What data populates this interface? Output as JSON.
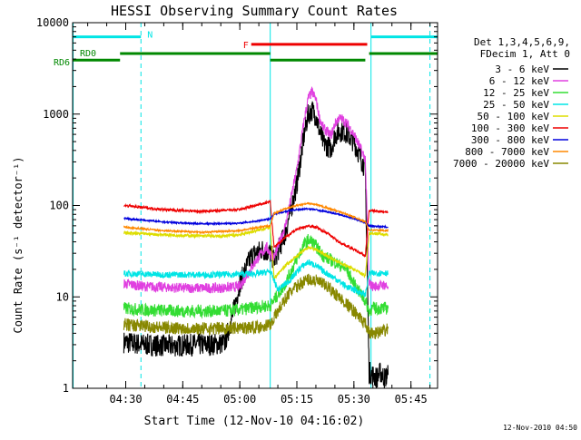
{
  "chart_data": {
    "type": "line",
    "title": "HESSI Observing Summary Count Rates",
    "xlabel": "Start Time (12-Nov-10 04:16:02)",
    "ylabel": "Count Rate (s⁻¹ detector⁻¹)",
    "ylog": true,
    "xlim": [
      "04:16:02",
      "05:52:00"
    ],
    "ylim": [
      1,
      10000
    ],
    "x_ticks": [
      "04:30",
      "04:45",
      "05:00",
      "05:15",
      "05:30",
      "05:45"
    ],
    "y_ticks": [
      "1",
      "10",
      "100",
      "1000",
      "10000"
    ],
    "footer_date": "12-Nov-2010 04:50",
    "legend": {
      "header": [
        "Det 1,3,4,5,6,9,",
        "FDecim 1, Att 0"
      ],
      "position": "right"
    },
    "state_bars": [
      {
        "label": "N",
        "color": "#00e5e5",
        "y": 7000,
        "segments": [
          [
            "04:16:02",
            "04:34:00"
          ],
          [
            "05:34:30",
            "05:52:00"
          ]
        ]
      },
      {
        "label": "F",
        "color": "#ee0000",
        "y": 5800,
        "segments": [
          [
            "05:03:00",
            "05:33:30"
          ]
        ]
      },
      {
        "label": "RD0",
        "color": "#008800",
        "y": 4600,
        "segments": [
          [
            "04:28:30",
            "05:08:00"
          ],
          [
            "05:34:00",
            "05:52:00"
          ]
        ]
      },
      {
        "label": "RD6",
        "color": "#008800",
        "y": 3900,
        "segments": [
          [
            "04:16:02",
            "04:28:30"
          ],
          [
            "05:08:00",
            "05:33:00"
          ]
        ]
      }
    ],
    "vlines": [
      {
        "color": "#00e5e5",
        "style": "solid",
        "x": "04:16:10"
      },
      {
        "color": "#00e5e5",
        "style": "dashed",
        "x": "04:34:00"
      },
      {
        "color": "#00e5e5",
        "style": "solid",
        "x": "05:08:00"
      },
      {
        "color": "#00e5e5",
        "style": "solid",
        "x": "05:34:30"
      },
      {
        "color": "#00e5e5",
        "style": "dashed",
        "x": "05:50:00"
      }
    ],
    "series": [
      {
        "name": "3 - 6 keV",
        "color": "#000000",
        "noise": 0.35,
        "x": [
          "04:29:30",
          "04:35",
          "04:42",
          "04:48",
          "04:52",
          "04:56",
          "04:58",
          "05:00",
          "05:03",
          "05:06",
          "05:08",
          "05:09",
          "05:12",
          "05:15",
          "05:17",
          "05:18",
          "05:19",
          "05:20",
          "05:21",
          "05:22",
          "05:24",
          "05:25",
          "05:26",
          "05:27",
          "05:28",
          "05:30",
          "05:32",
          "05:33",
          "05:34",
          "05:35",
          "05:36",
          "05:37",
          "05:38",
          "05:39"
        ],
        "values": [
          3.2,
          3.0,
          2.9,
          3.0,
          3.0,
          3.1,
          6,
          14,
          28,
          33,
          30,
          25,
          50,
          170,
          620,
          1000,
          1100,
          950,
          650,
          480,
          420,
          580,
          640,
          660,
          620,
          500,
          320,
          250,
          1.5,
          1.4,
          1.3,
          1.5,
          1.3,
          1.4
        ]
      },
      {
        "name": "6 - 12 keV",
        "color": "#e040e0",
        "noise": 0.16,
        "x": [
          "04:29:30",
          "04:35",
          "04:45",
          "04:55",
          "05:00",
          "05:04",
          "05:07",
          "05:08",
          "05:09",
          "05:12",
          "05:15",
          "05:17",
          "05:18",
          "05:19",
          "05:20",
          "05:21",
          "05:22",
          "05:24",
          "05:25",
          "05:26",
          "05:27",
          "05:28",
          "05:30",
          "05:32",
          "05:33",
          "05:34",
          "05:35",
          "05:38",
          "05:39"
        ],
        "values": [
          14,
          13,
          12.5,
          12.5,
          13,
          24,
          35,
          30,
          27,
          60,
          250,
          900,
          1500,
          1750,
          1450,
          900,
          700,
          580,
          780,
          900,
          880,
          800,
          600,
          400,
          320,
          14,
          13,
          13.5,
          13
        ]
      },
      {
        "name": "12 - 25 keV",
        "color": "#33dd33",
        "noise": 0.2,
        "x": [
          "04:29:30",
          "04:35",
          "04:45",
          "04:55",
          "05:00",
          "05:05",
          "05:08",
          "05:12",
          "05:15",
          "05:17",
          "05:18",
          "05:19",
          "05:20",
          "05:22",
          "05:25",
          "05:28",
          "05:30",
          "05:33",
          "05:34",
          "05:35",
          "05:38",
          "05:39"
        ],
        "values": [
          7.5,
          7.2,
          7.0,
          7.0,
          7.2,
          7.8,
          8,
          14,
          26,
          38,
          42,
          40,
          36,
          28,
          24,
          20,
          14,
          9,
          7,
          7.5,
          7.5,
          7.5
        ]
      },
      {
        "name": "25 - 50 keV",
        "color": "#00e5e5",
        "noise": 0.1,
        "x": [
          "04:29:30",
          "04:40",
          "04:55",
          "05:05",
          "05:08",
          "05:10",
          "05:13",
          "05:16",
          "05:18",
          "05:20",
          "05:22",
          "05:25",
          "05:28",
          "05:31",
          "05:33",
          "05:34",
          "05:35",
          "05:38",
          "05:39"
        ],
        "values": [
          18,
          17.5,
          17.5,
          18,
          19,
          12,
          15,
          21,
          24,
          22,
          19,
          16,
          13,
          11.5,
          10.5,
          18,
          18,
          18.5,
          18
        ]
      },
      {
        "name": "50 - 100 keV",
        "color": "#dddd00",
        "noise": 0.05,
        "x": [
          "04:29:30",
          "04:45",
          "04:55",
          "05:00",
          "05:05",
          "05:08",
          "05:09",
          "05:12",
          "05:15",
          "05:18",
          "05:20",
          "05:23",
          "05:26",
          "05:30",
          "05:33",
          "05:34",
          "05:39"
        ],
        "values": [
          50,
          47,
          46,
          48,
          54,
          58,
          16,
          22,
          28,
          35,
          33,
          28,
          24,
          20,
          17,
          50,
          48
        ]
      },
      {
        "name": "100 - 300 keV",
        "color": "#ee0000",
        "noise": 0.04,
        "x": [
          "04:29:30",
          "04:40",
          "04:50",
          "05:00",
          "05:05",
          "05:08",
          "05:09",
          "05:12",
          "05:15",
          "05:18",
          "05:20",
          "05:23",
          "05:26",
          "05:30",
          "05:33",
          "05:34",
          "05:39"
        ],
        "values": [
          100,
          90,
          86,
          90,
          102,
          110,
          35,
          45,
          55,
          60,
          58,
          50,
          40,
          33,
          28,
          88,
          85
        ]
      },
      {
        "name": "300 - 800 keV",
        "color": "#0000dd",
        "noise": 0.025,
        "x": [
          "04:29:30",
          "04:40",
          "04:50",
          "05:00",
          "05:05",
          "05:08",
          "05:09",
          "05:12",
          "05:15",
          "05:18",
          "05:20",
          "05:23",
          "05:26",
          "05:30",
          "05:33",
          "05:34",
          "05:39"
        ],
        "values": [
          72,
          66,
          63,
          64,
          68,
          72,
          80,
          86,
          90,
          92,
          90,
          85,
          80,
          72,
          65,
          60,
          58
        ]
      },
      {
        "name": "800 - 7000 keV",
        "color": "#ff8800",
        "noise": 0.025,
        "x": [
          "04:29:30",
          "04:40",
          "04:50",
          "05:00",
          "05:05",
          "05:08",
          "05:09",
          "05:12",
          "05:15",
          "05:18",
          "05:20",
          "05:23",
          "05:26",
          "05:30",
          "05:33",
          "05:34",
          "05:39"
        ],
        "values": [
          58,
          53,
          51,
          53,
          58,
          60,
          82,
          92,
          100,
          105,
          102,
          94,
          86,
          75,
          66,
          54,
          53
        ]
      },
      {
        "name": "7000 - 20000 keV",
        "color": "#888800",
        "noise": 0.2,
        "x": [
          "04:29:30",
          "04:40",
          "04:50",
          "05:00",
          "05:05",
          "05:08",
          "05:10",
          "05:13",
          "05:16",
          "05:18",
          "05:20",
          "05:23",
          "05:26",
          "05:30",
          "05:33",
          "05:34",
          "05:35",
          "05:38",
          "05:39"
        ],
        "values": [
          5,
          4.6,
          4.5,
          4.6,
          4.7,
          5,
          7,
          11,
          14,
          15.5,
          15,
          13,
          10,
          7,
          5,
          4,
          4,
          4.2,
          4.5
        ]
      }
    ]
  }
}
